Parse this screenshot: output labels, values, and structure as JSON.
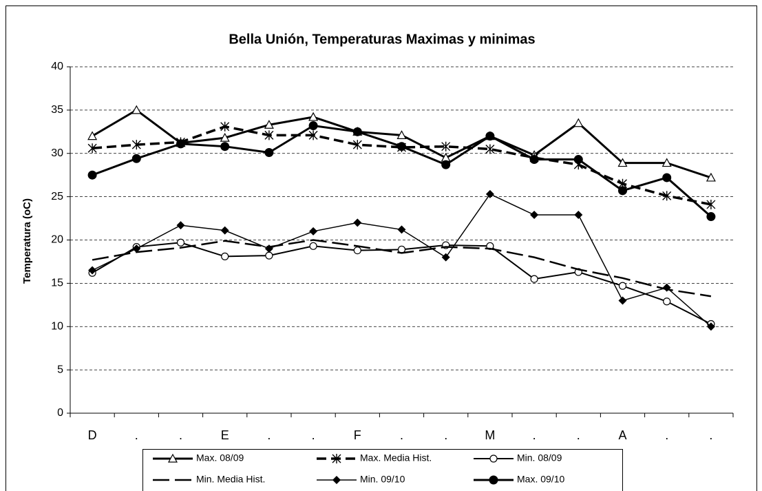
{
  "chart_data": {
    "type": "line",
    "title": "Bella Unión, Temperaturas Maximas y minimas",
    "y_label": "Temperatura (oC)",
    "categories": [
      "D",
      ".",
      ".",
      "E",
      ".",
      ".",
      "F",
      ".",
      ".",
      "M",
      ".",
      ".",
      "A",
      ".",
      "."
    ],
    "ylim": [
      0,
      40
    ],
    "yticks": [
      0,
      5,
      10,
      15,
      20,
      25,
      30,
      35,
      40
    ],
    "grid": true,
    "legend": "bottom",
    "series": [
      {
        "name": "Max. 08/09",
        "color": "#000000",
        "marker": "triangle-open",
        "dash": "solid",
        "values": [
          32.0,
          35.0,
          31.2,
          31.8,
          33.3,
          34.2,
          32.5,
          32.1,
          29.5,
          32.0,
          29.8,
          33.5,
          28.9,
          28.9,
          27.2
        ]
      },
      {
        "name": "Max. Media Hist.",
        "color": "#000000",
        "marker": "asterisk",
        "dash": "dashed",
        "values": [
          30.6,
          31.0,
          31.3,
          33.1,
          32.1,
          32.1,
          31.0,
          30.7,
          30.8,
          30.5,
          29.5,
          28.7,
          26.5,
          25.1,
          24.1
        ]
      },
      {
        "name": "Min. 08/09",
        "color": "#000000",
        "marker": "circle-open",
        "dash": "solid",
        "values": [
          16.2,
          19.2,
          19.7,
          18.1,
          18.2,
          19.3,
          18.8,
          18.9,
          19.4,
          19.3,
          15.5,
          16.3,
          14.7,
          12.9,
          10.3
        ]
      },
      {
        "name": "Min. Media Hist.",
        "color": "#000000",
        "marker": "none",
        "dash": "longdash",
        "values": [
          17.7,
          18.6,
          19.1,
          19.9,
          19.2,
          20.0,
          19.3,
          18.5,
          19.2,
          19.0,
          18.0,
          16.6,
          15.6,
          14.3,
          13.5
        ]
      },
      {
        "name": "Min. 09/10",
        "color": "#000000",
        "marker": "diamond",
        "dash": "solid",
        "values": [
          16.5,
          19.0,
          21.7,
          21.1,
          19.0,
          21.0,
          22.0,
          21.2,
          18.0,
          25.3,
          22.9,
          22.9,
          13.0,
          14.5,
          10.0
        ]
      },
      {
        "name": "Max. 09/10",
        "color": "#000000",
        "marker": "circle",
        "dash": "solid",
        "values": [
          27.5,
          29.4,
          31.1,
          30.8,
          30.1,
          33.2,
          32.5,
          30.8,
          28.7,
          32.0,
          29.3,
          29.3,
          25.7,
          27.2,
          22.7
        ]
      }
    ]
  }
}
